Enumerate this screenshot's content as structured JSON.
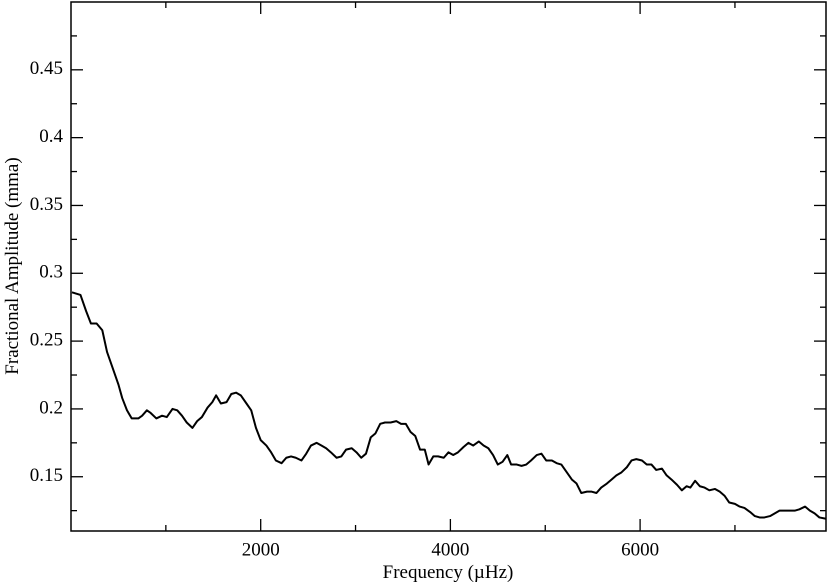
{
  "chart_data": {
    "type": "line",
    "xlabel": "Frequency (µHz)",
    "ylabel": "Fractional Amplitude (mma)",
    "xlim": [
      0,
      7960
    ],
    "ylim": [
      0.11,
      0.5
    ],
    "xticks": [
      2000,
      4000,
      6000
    ],
    "xminorticks": [
      1000,
      3000,
      5000,
      7000
    ],
    "yticks": [
      0.15,
      0.2,
      0.25,
      0.3,
      0.35,
      0.4,
      0.45
    ],
    "yminorticks": [
      0.125,
      0.175,
      0.225,
      0.275,
      0.325,
      0.375,
      0.425,
      0.475
    ],
    "grid": false,
    "series": [
      {
        "color": "#000000",
        "x": [
          10,
          100,
          160,
          210,
          270,
          330,
          380,
          440,
          500,
          540,
          590,
          640,
          710,
          750,
          800,
          840,
          900,
          960,
          1010,
          1070,
          1120,
          1170,
          1220,
          1280,
          1330,
          1380,
          1440,
          1490,
          1530,
          1580,
          1640,
          1690,
          1740,
          1790,
          1850,
          1900,
          1950,
          2000,
          2060,
          2110,
          2160,
          2220,
          2270,
          2320,
          2370,
          2430,
          2480,
          2530,
          2590,
          2640,
          2690,
          2740,
          2800,
          2850,
          2900,
          2960,
          3010,
          3060,
          3110,
          3160,
          3210,
          3260,
          3310,
          3370,
          3430,
          3480,
          3530,
          3580,
          3630,
          3680,
          3730,
          3770,
          3820,
          3870,
          3930,
          3980,
          4030,
          4080,
          4140,
          4190,
          4240,
          4300,
          4350,
          4400,
          4450,
          4500,
          4550,
          4600,
          4640,
          4700,
          4750,
          4800,
          4850,
          4910,
          4960,
          5010,
          5070,
          5120,
          5170,
          5220,
          5280,
          5330,
          5380,
          5440,
          5490,
          5540,
          5590,
          5650,
          5700,
          5750,
          5800,
          5860,
          5910,
          5960,
          6020,
          6070,
          6120,
          6170,
          6230,
          6280,
          6330,
          6390,
          6440,
          6490,
          6530,
          6580,
          6630,
          6680,
          6730,
          6790,
          6840,
          6890,
          6940,
          7000,
          7050,
          7100,
          7160,
          7210,
          7260,
          7310,
          7370,
          7420,
          7470,
          7530,
          7580,
          7630,
          7680,
          7740,
          7790,
          7840,
          7890,
          7960
        ],
        "values": [
          0.286,
          0.284,
          0.272,
          0.263,
          0.263,
          0.258,
          0.242,
          0.23,
          0.218,
          0.208,
          0.199,
          0.193,
          0.193,
          0.195,
          0.199,
          0.197,
          0.193,
          0.195,
          0.194,
          0.2,
          0.199,
          0.195,
          0.19,
          0.186,
          0.191,
          0.194,
          0.201,
          0.205,
          0.21,
          0.204,
          0.205,
          0.211,
          0.212,
          0.21,
          0.204,
          0.199,
          0.186,
          0.177,
          0.173,
          0.168,
          0.162,
          0.16,
          0.164,
          0.165,
          0.164,
          0.162,
          0.167,
          0.173,
          0.175,
          0.173,
          0.171,
          0.168,
          0.164,
          0.165,
          0.17,
          0.171,
          0.168,
          0.164,
          0.167,
          0.179,
          0.182,
          0.189,
          0.19,
          0.19,
          0.191,
          0.189,
          0.189,
          0.183,
          0.18,
          0.17,
          0.17,
          0.159,
          0.165,
          0.165,
          0.164,
          0.168,
          0.166,
          0.168,
          0.172,
          0.175,
          0.173,
          0.176,
          0.173,
          0.171,
          0.166,
          0.159,
          0.161,
          0.166,
          0.159,
          0.159,
          0.158,
          0.159,
          0.162,
          0.166,
          0.167,
          0.162,
          0.162,
          0.16,
          0.159,
          0.154,
          0.148,
          0.145,
          0.138,
          0.139,
          0.139,
          0.138,
          0.142,
          0.145,
          0.148,
          0.151,
          0.153,
          0.157,
          0.162,
          0.163,
          0.162,
          0.159,
          0.159,
          0.155,
          0.156,
          0.151,
          0.148,
          0.144,
          0.14,
          0.143,
          0.142,
          0.147,
          0.143,
          0.142,
          0.14,
          0.141,
          0.139,
          0.136,
          0.131,
          0.13,
          0.128,
          0.127,
          0.124,
          0.121,
          0.12,
          0.12,
          0.121,
          0.123,
          0.125,
          0.125,
          0.125,
          0.125,
          0.126,
          0.128,
          0.125,
          0.123,
          0.12,
          0.119
        ]
      }
    ]
  }
}
